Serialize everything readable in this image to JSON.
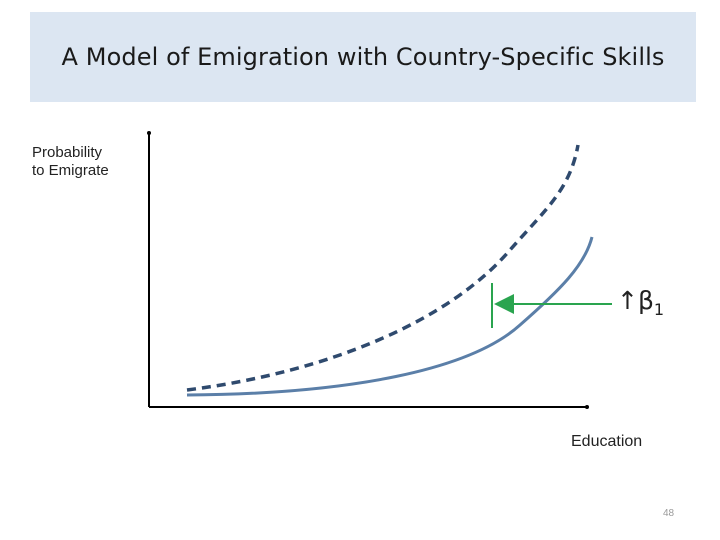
{
  "slide": {
    "title": "A Model of Emigration with Country-Specific Skills",
    "page_number": "48"
  },
  "diagram": {
    "y_axis_label": "Probability\nto Emigrate",
    "x_axis_label": "Education",
    "shift_label_symbol": "↑β",
    "shift_label_subscript": "1",
    "colors": {
      "background_band": "#dce6f2",
      "axis": "#000000",
      "curve": "#5b7fa8",
      "dashed_curve": "#2f4a6e",
      "shift_arrow": "#2aa44f"
    }
  }
}
